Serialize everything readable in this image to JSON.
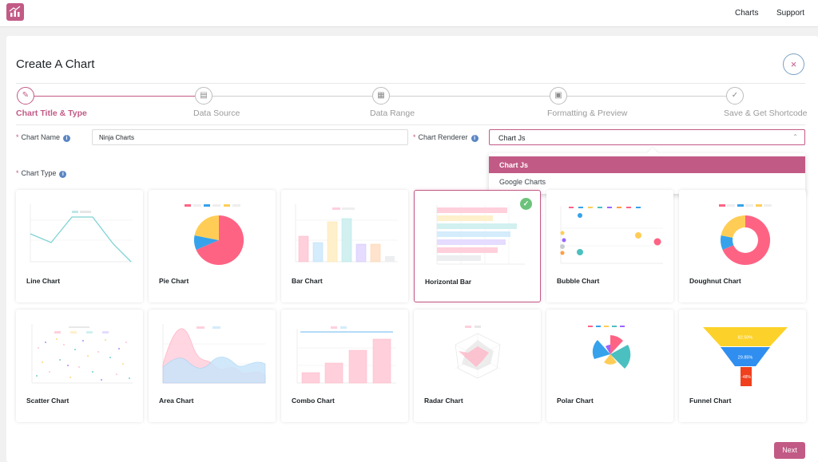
{
  "topbar": {
    "nav": {
      "charts": "Charts",
      "support": "Support"
    }
  },
  "panel": {
    "title": "Create A Chart",
    "close_label": "×",
    "steps": [
      {
        "label": "Chart Title & Type",
        "icon": "✎",
        "active": true
      },
      {
        "label": "Data Source",
        "icon": "▤",
        "active": false
      },
      {
        "label": "Data Range",
        "icon": "▦",
        "active": false
      },
      {
        "label": "Formatting & Preview",
        "icon": "▣",
        "active": false
      },
      {
        "label": "Save & Get Shortcode",
        "icon": "✓",
        "active": false
      }
    ],
    "fields": {
      "chart_name_label": "Chart Name",
      "chart_name_value": "Ninja Charts",
      "renderer_label": "Chart Renderer",
      "renderer_value": "Chart Js",
      "renderer_caret": "⌃",
      "renderer_options": [
        "Chart Js",
        "Google Charts"
      ],
      "chart_type_label": "Chart Type",
      "info_glyph": "i",
      "required_mark": "*"
    },
    "chart_types": [
      {
        "label": "Line Chart",
        "selected": false
      },
      {
        "label": "Pie Chart",
        "selected": false
      },
      {
        "label": "Bar Chart",
        "selected": false
      },
      {
        "label": "Horizontal Bar",
        "selected": true
      },
      {
        "label": "Bubble Chart",
        "selected": false
      },
      {
        "label": "Doughnut Chart",
        "selected": false
      },
      {
        "label": "Scatter Chart",
        "selected": false
      },
      {
        "label": "Area Chart",
        "selected": false
      },
      {
        "label": "Combo Chart",
        "selected": false
      },
      {
        "label": "Radar Chart",
        "selected": false
      },
      {
        "label": "Polar Chart",
        "selected": false
      },
      {
        "label": "Funnel Chart",
        "selected": false
      }
    ],
    "funnel_labels": [
      "82.50%",
      "29.85%",
      "-48%"
    ],
    "check_glyph": "✓",
    "next_label": "Next"
  },
  "colors": {
    "accent": "#c25a86",
    "pink": "#ff6384",
    "blue": "#36a2eb",
    "yellow": "#ffcd56",
    "teal": "#4bc0c0",
    "purple": "#9966ff",
    "orange": "#ff9f40",
    "grey": "#c9cbcf",
    "success": "#6bc37b"
  }
}
